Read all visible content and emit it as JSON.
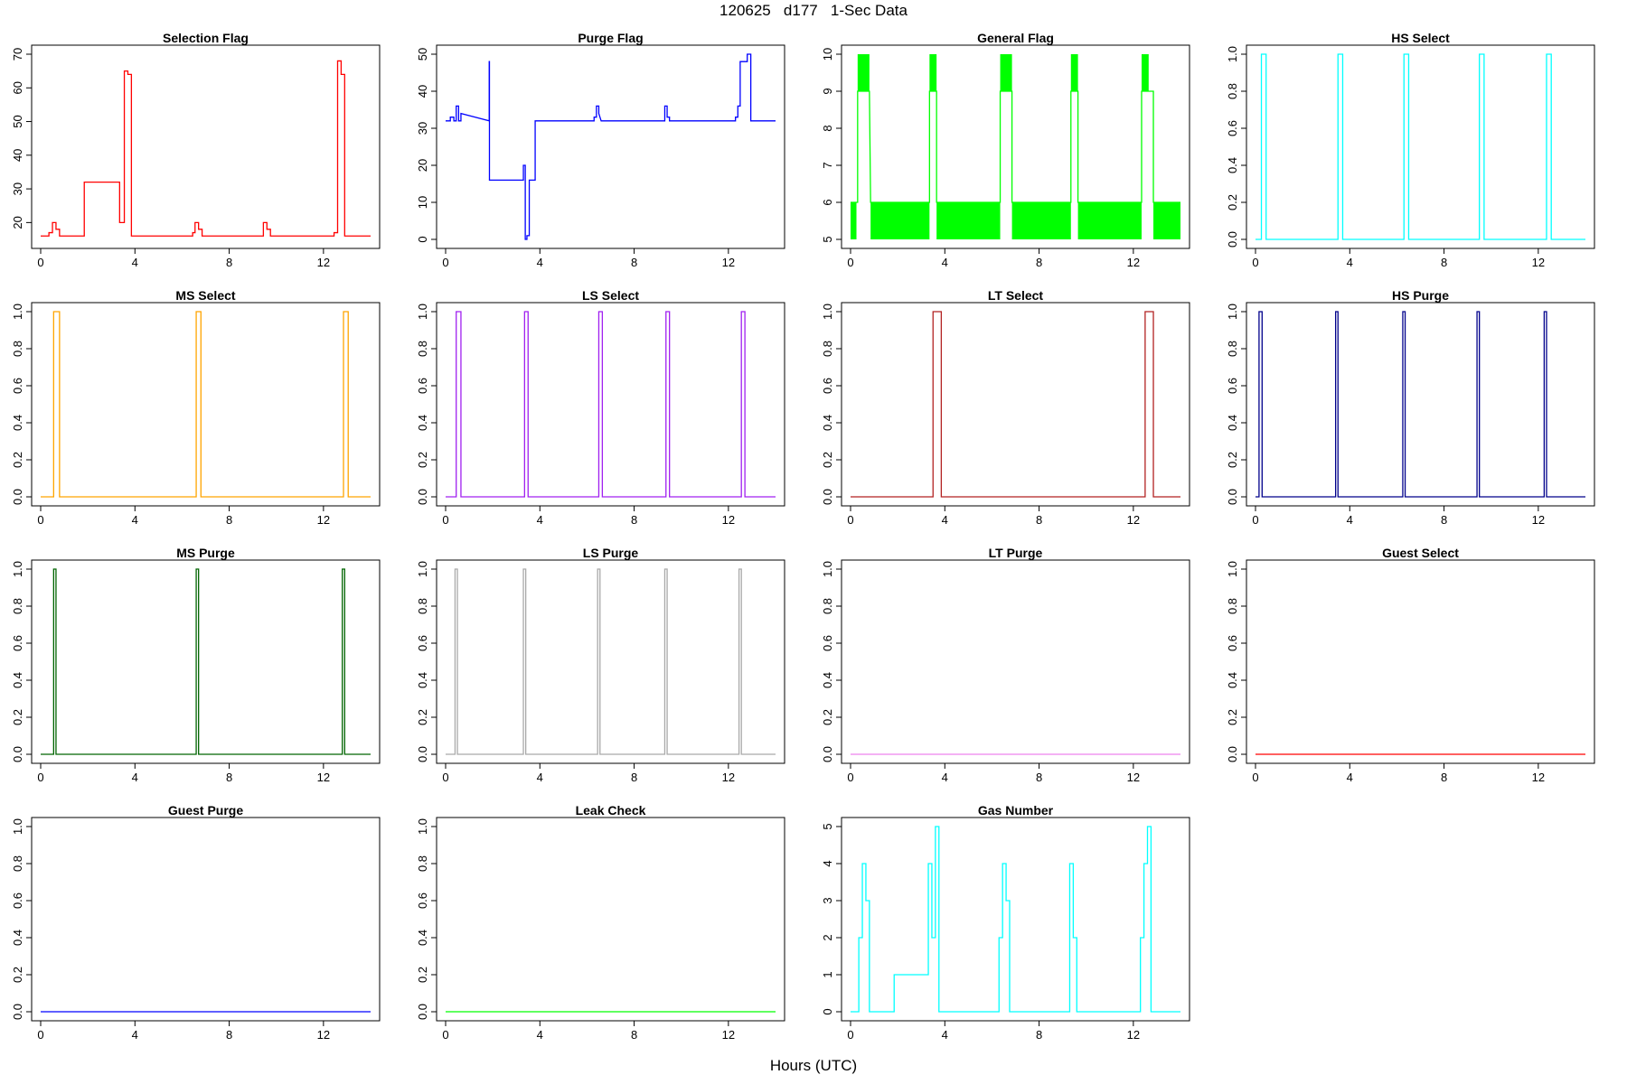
{
  "figure": {
    "title": "120625   d177   1-Sec Data",
    "xlabel": "Hours (UTC)"
  },
  "chart_data": [
    {
      "type": "line",
      "title": "Selection Flag",
      "color": "#ff0000",
      "xlim": [
        0,
        14
      ],
      "ylim": [
        15,
        70
      ],
      "xticks": [
        0,
        4,
        8,
        12
      ],
      "yticks": [
        20,
        30,
        40,
        50,
        60,
        70
      ],
      "x": [
        0,
        0.35,
        0.35,
        0.5,
        0.5,
        0.65,
        0.65,
        0.8,
        0.8,
        1.85,
        1.85,
        3.35,
        3.35,
        3.55,
        3.55,
        3.7,
        3.7,
        3.85,
        3.85,
        6.45,
        6.45,
        6.55,
        6.55,
        6.7,
        6.7,
        6.85,
        6.85,
        9.45,
        9.45,
        9.6,
        9.6,
        9.75,
        9.75,
        12.45,
        12.45,
        12.6,
        12.6,
        12.75,
        12.75,
        12.9,
        12.9,
        14
      ],
      "y": [
        16,
        16,
        17,
        17,
        20,
        20,
        18,
        18,
        16,
        16,
        32,
        32,
        20,
        20,
        65,
        65,
        64,
        64,
        16,
        16,
        17,
        17,
        20,
        20,
        18,
        18,
        16,
        16,
        20,
        20,
        18,
        18,
        16,
        16,
        17,
        17,
        68,
        68,
        64,
        64,
        16,
        16
      ]
    },
    {
      "type": "line",
      "title": "Purge Flag",
      "color": "#0000ff",
      "xlim": [
        0,
        14
      ],
      "ylim": [
        0,
        50
      ],
      "xticks": [
        0,
        4,
        8,
        12
      ],
      "yticks": [
        0,
        10,
        20,
        30,
        40,
        50
      ],
      "x": [
        0,
        0.2,
        0.2,
        0.35,
        0.35,
        0.45,
        0.45,
        0.55,
        0.55,
        0.65,
        0.65,
        1.85,
        1.85,
        1.86,
        1.86,
        3.3,
        3.3,
        3.38,
        3.38,
        3.45,
        3.45,
        3.55,
        3.55,
        3.8,
        3.8,
        6.3,
        6.3,
        6.4,
        6.4,
        6.5,
        6.5,
        6.6,
        6.6,
        9.3,
        9.3,
        9.4,
        9.4,
        9.5,
        9.5,
        12.3,
        12.3,
        12.4,
        12.4,
        12.5,
        12.5,
        12.8,
        12.8,
        12.95,
        12.95,
        14
      ],
      "y": [
        32,
        32,
        33,
        33,
        32,
        32,
        36,
        36,
        32,
        32,
        34,
        32,
        48,
        48,
        16,
        16,
        20,
        20,
        0,
        0,
        1,
        1,
        16,
        16,
        32,
        32,
        33,
        33,
        36,
        36,
        34,
        32,
        32,
        32,
        36,
        36,
        33,
        33,
        32,
        32,
        33,
        33,
        36,
        36,
        48,
        48,
        50,
        50,
        32,
        32
      ]
    },
    {
      "type": "line",
      "title": "General Flag",
      "color": "#00ff00",
      "xlim": [
        0,
        14
      ],
      "ylim": [
        5,
        10
      ],
      "xticks": [
        0,
        4,
        8,
        12
      ],
      "yticks": [
        5,
        6,
        7,
        8,
        9,
        10
      ],
      "blocks": [
        [
          0,
          0.25,
          5,
          6
        ],
        [
          0.85,
          3.35,
          5,
          6
        ],
        [
          3.65,
          6.35,
          5,
          6
        ],
        [
          6.85,
          9.35,
          5,
          6
        ],
        [
          9.65,
          12.35,
          5,
          6
        ],
        [
          12.85,
          14,
          5,
          6
        ],
        [
          0.3,
          0.8,
          9,
          10
        ],
        [
          3.35,
          3.65,
          9,
          10
        ],
        [
          6.35,
          6.85,
          9,
          10
        ],
        [
          9.35,
          9.65,
          9,
          10
        ],
        [
          12.35,
          12.65,
          9,
          10
        ]
      ],
      "x": [
        0,
        0.25,
        0.3,
        0.3,
        0.8,
        0.85,
        3.35,
        3.35,
        3.65,
        3.65,
        6.35,
        6.35,
        6.85,
        6.85,
        9.35,
        9.35,
        9.65,
        9.65,
        12.35,
        12.35,
        12.85,
        12.85,
        14
      ],
      "y": [
        6,
        6,
        6,
        9,
        9,
        6,
        6,
        9,
        9,
        6,
        6,
        9,
        9,
        6,
        6,
        9,
        9,
        6,
        6,
        9,
        9,
        6,
        6
      ]
    },
    {
      "type": "line",
      "title": "HS Select",
      "color": "#00ffff",
      "xlim": [
        0,
        14
      ],
      "ylim": [
        0,
        1
      ],
      "xticks": [
        0,
        4,
        8,
        12
      ],
      "yticks": [
        0.0,
        0.2,
        0.4,
        0.6,
        0.8,
        1.0
      ],
      "x": [
        0,
        0.25,
        0.25,
        0.45,
        0.45,
        3.5,
        3.5,
        3.7,
        3.7,
        6.3,
        6.3,
        6.5,
        6.5,
        9.5,
        9.5,
        9.7,
        9.7,
        12.35,
        12.35,
        12.55,
        12.55,
        14
      ],
      "y": [
        0,
        0,
        1,
        1,
        0,
        0,
        1,
        1,
        0,
        0,
        1,
        1,
        0,
        0,
        1,
        1,
        0,
        0,
        1,
        1,
        0,
        0
      ]
    },
    {
      "type": "line",
      "title": "MS Select",
      "color": "#ffa500",
      "xlim": [
        0,
        14
      ],
      "ylim": [
        0,
        1
      ],
      "xticks": [
        0,
        4,
        8,
        12
      ],
      "yticks": [
        0.0,
        0.2,
        0.4,
        0.6,
        0.8,
        1.0
      ],
      "x": [
        0,
        0.55,
        0.55,
        0.8,
        0.8,
        6.6,
        6.6,
        6.8,
        6.8,
        12.85,
        12.85,
        13.05,
        13.05,
        14
      ],
      "y": [
        0,
        0,
        1,
        1,
        0,
        0,
        1,
        1,
        0,
        0,
        1,
        1,
        0,
        0
      ]
    },
    {
      "type": "line",
      "title": "LS Select",
      "color": "#a020f0",
      "xlim": [
        0,
        14
      ],
      "ylim": [
        0,
        1
      ],
      "xticks": [
        0,
        4,
        8,
        12
      ],
      "yticks": [
        0.0,
        0.2,
        0.4,
        0.6,
        0.8,
        1.0
      ],
      "x": [
        0,
        0.45,
        0.45,
        0.65,
        0.65,
        3.35,
        3.35,
        3.5,
        3.5,
        6.5,
        6.5,
        6.65,
        6.65,
        9.35,
        9.35,
        9.5,
        9.5,
        12.55,
        12.55,
        12.7,
        12.7,
        14
      ],
      "y": [
        0,
        0,
        1,
        1,
        0,
        0,
        1,
        1,
        0,
        0,
        1,
        1,
        0,
        0,
        1,
        1,
        0,
        0,
        1,
        1,
        0,
        0
      ]
    },
    {
      "type": "line",
      "title": "LT Select",
      "color": "#b22222",
      "xlim": [
        0,
        14
      ],
      "ylim": [
        0,
        1
      ],
      "xticks": [
        0,
        4,
        8,
        12
      ],
      "yticks": [
        0.0,
        0.2,
        0.4,
        0.6,
        0.8,
        1.0
      ],
      "x": [
        0,
        3.5,
        3.5,
        3.85,
        3.85,
        12.5,
        12.5,
        12.85,
        12.85,
        14
      ],
      "y": [
        0,
        0,
        1,
        1,
        0,
        0,
        1,
        1,
        0,
        0
      ]
    },
    {
      "type": "line",
      "title": "HS Purge",
      "color": "#00008b",
      "xlim": [
        0,
        14
      ],
      "ylim": [
        0,
        1
      ],
      "xticks": [
        0,
        4,
        8,
        12
      ],
      "yticks": [
        0.0,
        0.2,
        0.4,
        0.6,
        0.8,
        1.0
      ],
      "x": [
        0,
        0.15,
        0.15,
        0.28,
        0.28,
        3.4,
        3.4,
        3.5,
        3.5,
        6.25,
        6.25,
        6.35,
        6.35,
        9.4,
        9.4,
        9.5,
        9.5,
        12.25,
        12.25,
        12.35,
        12.35,
        14
      ],
      "y": [
        0,
        0,
        1,
        1,
        0,
        0,
        1,
        1,
        0,
        0,
        1,
        1,
        0,
        0,
        1,
        1,
        0,
        0,
        1,
        1,
        0,
        0
      ]
    },
    {
      "type": "line",
      "title": "MS Purge",
      "color": "#006400",
      "xlim": [
        0,
        14
      ],
      "ylim": [
        0,
        1
      ],
      "xticks": [
        0,
        4,
        8,
        12
      ],
      "yticks": [
        0.0,
        0.2,
        0.4,
        0.6,
        0.8,
        1.0
      ],
      "x": [
        0,
        0.55,
        0.55,
        0.65,
        0.65,
        6.6,
        6.6,
        6.7,
        6.7,
        12.8,
        12.8,
        12.9,
        12.9,
        14
      ],
      "y": [
        0,
        0,
        1,
        1,
        0,
        0,
        1,
        1,
        0,
        0,
        1,
        1,
        0,
        0
      ]
    },
    {
      "type": "line",
      "title": "LS Purge",
      "color": "#a9a9a9",
      "xlim": [
        0,
        14
      ],
      "ylim": [
        0,
        1
      ],
      "xticks": [
        0,
        4,
        8,
        12
      ],
      "yticks": [
        0.0,
        0.2,
        0.4,
        0.6,
        0.8,
        1.0
      ],
      "x": [
        0,
        0.4,
        0.4,
        0.5,
        0.5,
        3.3,
        3.3,
        3.4,
        3.4,
        6.45,
        6.45,
        6.55,
        6.55,
        9.3,
        9.3,
        9.4,
        9.4,
        12.45,
        12.45,
        12.55,
        12.55,
        14
      ],
      "y": [
        0,
        0,
        1,
        1,
        0,
        0,
        1,
        1,
        0,
        0,
        1,
        1,
        0,
        0,
        1,
        1,
        0,
        0,
        1,
        1,
        0,
        0
      ]
    },
    {
      "type": "line",
      "title": "LT Purge",
      "color": "#ee82ee",
      "xlim": [
        0,
        14
      ],
      "ylim": [
        0,
        1
      ],
      "xticks": [
        0,
        4,
        8,
        12
      ],
      "yticks": [
        0.0,
        0.2,
        0.4,
        0.6,
        0.8,
        1.0
      ],
      "x": [
        0,
        14
      ],
      "y": [
        0,
        0
      ]
    },
    {
      "type": "line",
      "title": "Guest Select",
      "color": "#ff0000",
      "xlim": [
        0,
        14
      ],
      "ylim": [
        0,
        1
      ],
      "xticks": [
        0,
        4,
        8,
        12
      ],
      "yticks": [
        0.0,
        0.2,
        0.4,
        0.6,
        0.8,
        1.0
      ],
      "x": [
        0,
        14
      ],
      "y": [
        0,
        0
      ]
    },
    {
      "type": "line",
      "title": "Guest Purge",
      "color": "#0000ff",
      "xlim": [
        0,
        14
      ],
      "ylim": [
        0,
        1
      ],
      "xticks": [
        0,
        4,
        8,
        12
      ],
      "yticks": [
        0.0,
        0.2,
        0.4,
        0.6,
        0.8,
        1.0
      ],
      "x": [
        0,
        14
      ],
      "y": [
        0,
        0
      ]
    },
    {
      "type": "line",
      "title": "Leak Check",
      "color": "#00ff00",
      "xlim": [
        0,
        14
      ],
      "ylim": [
        0,
        1
      ],
      "xticks": [
        0,
        4,
        8,
        12
      ],
      "yticks": [
        0.0,
        0.2,
        0.4,
        0.6,
        0.8,
        1.0
      ],
      "x": [
        0,
        14
      ],
      "y": [
        0,
        0
      ]
    },
    {
      "type": "line",
      "title": "Gas Number",
      "color": "#00ffff",
      "xlim": [
        0,
        14
      ],
      "ylim": [
        0,
        5
      ],
      "xticks": [
        0,
        4,
        8,
        12
      ],
      "yticks": [
        0,
        1,
        2,
        3,
        4,
        5
      ],
      "x": [
        0,
        0.35,
        0.35,
        0.5,
        0.5,
        0.65,
        0.65,
        0.8,
        0.8,
        1.85,
        1.85,
        3.3,
        3.3,
        3.45,
        3.45,
        3.6,
        3.6,
        3.75,
        3.75,
        6.3,
        6.3,
        6.45,
        6.45,
        6.6,
        6.6,
        6.75,
        6.75,
        9.3,
        9.3,
        9.45,
        9.45,
        9.6,
        9.6,
        12.3,
        12.3,
        12.45,
        12.45,
        12.6,
        12.6,
        12.75,
        12.75,
        14
      ],
      "y": [
        0,
        0,
        2,
        2,
        4,
        4,
        3,
        3,
        0,
        0,
        1,
        1,
        4,
        4,
        2,
        2,
        5,
        5,
        0,
        0,
        2,
        2,
        4,
        4,
        3,
        3,
        0,
        0,
        4,
        4,
        2,
        2,
        0,
        0,
        2,
        2,
        4,
        4,
        5,
        5,
        0,
        0
      ]
    }
  ]
}
